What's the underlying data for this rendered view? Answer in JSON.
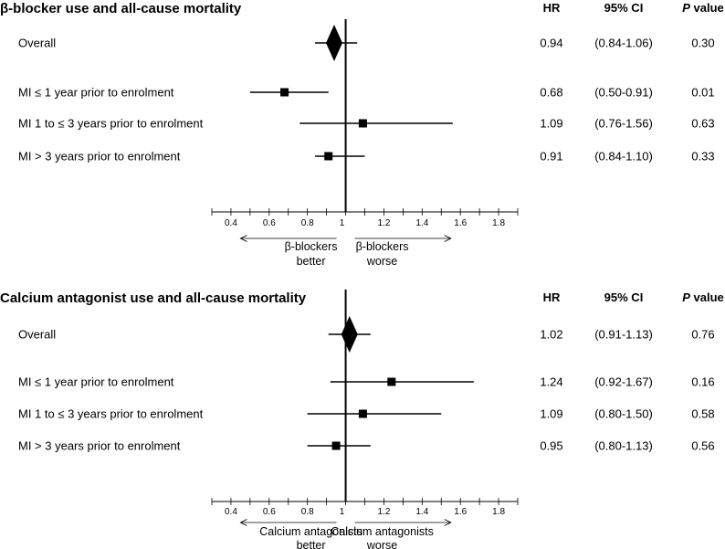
{
  "chart_data": [
    {
      "type": "forest",
      "title": "β-blocker use and all-cause mortality",
      "headers": {
        "hr": "HR",
        "ci": "95% CI",
        "p_italic": "P",
        "p_rest": " value"
      },
      "rows": [
        {
          "label": "Overall",
          "hr": 0.94,
          "lo": 0.84,
          "hi": 1.06,
          "hr_text": "0.94",
          "ci_text": "(0.84-1.06)",
          "p_text": "0.30",
          "marker": "diamond"
        },
        {
          "label": "MI ≤ 1 year prior to enrolment",
          "hr": 0.68,
          "lo": 0.5,
          "hi": 0.91,
          "hr_text": "0.68",
          "ci_text": "(0.50-0.91)",
          "p_text": "0.01",
          "marker": "square"
        },
        {
          "label": "MI 1 to ≤ 3 years prior to enrolment",
          "hr": 1.09,
          "lo": 0.76,
          "hi": 1.56,
          "hr_text": "1.09",
          "ci_text": "(0.76-1.56)",
          "p_text": "0.63",
          "marker": "square"
        },
        {
          "label": "MI > 3 years prior to enrolment",
          "hr": 0.91,
          "lo": 0.84,
          "hi": 1.1,
          "hr_text": "0.91",
          "ci_text": "(0.84-1.10)",
          "p_text": "0.33",
          "marker": "square"
        }
      ],
      "xaxis": {
        "min": 0.3,
        "max": 1.9,
        "ticks": [
          "0.4",
          "0.6",
          "0.8",
          "1",
          "1.2",
          "1.4",
          "1.6",
          "1.8"
        ],
        "reference": 1
      },
      "left_label": [
        "β-blockers",
        "better"
      ],
      "right_label": [
        "β-blockers",
        "worse"
      ]
    },
    {
      "type": "forest",
      "title": "Calcium antagonist use and all-cause mortality",
      "headers": {
        "hr": "HR",
        "ci": "95% CI",
        "p_italic": "P",
        "p_rest": " value"
      },
      "rows": [
        {
          "label": "Overall",
          "hr": 1.02,
          "lo": 0.91,
          "hi": 1.13,
          "hr_text": "1.02",
          "ci_text": "(0.91-1.13)",
          "p_text": "0.76",
          "marker": "diamond"
        },
        {
          "label": "MI ≤ 1 year prior to enrolment",
          "hr": 1.24,
          "lo": 0.92,
          "hi": 1.67,
          "hr_text": "1.24",
          "ci_text": "(0.92-1.67)",
          "p_text": "0.16",
          "marker": "square"
        },
        {
          "label": "MI 1 to ≤ 3 years prior to enrolment",
          "hr": 1.09,
          "lo": 0.8,
          "hi": 1.5,
          "hr_text": "1.09",
          "ci_text": "(0.80-1.50)",
          "p_text": "0.58",
          "marker": "square"
        },
        {
          "label": "MI > 3 years prior to enrolment",
          "hr": 0.95,
          "lo": 0.8,
          "hi": 1.13,
          "hr_text": "0.95",
          "ci_text": "(0.80-1.13)",
          "p_text": "0.56",
          "marker": "square"
        }
      ],
      "xaxis": {
        "min": 0.3,
        "max": 1.9,
        "ticks": [
          "0.4",
          "0.6",
          "0.8",
          "1",
          "1.2",
          "1.4",
          "1.6",
          "1.8"
        ],
        "reference": 1
      },
      "left_label": [
        "Calcium antagonists",
        "better"
      ],
      "right_label": [
        "Calcium antagonists",
        "worse"
      ]
    }
  ]
}
